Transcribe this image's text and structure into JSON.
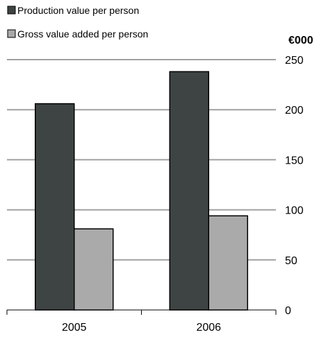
{
  "chart_data": {
    "type": "bar",
    "categories": [
      "2005",
      "2006"
    ],
    "series": [
      {
        "name": "Production value per person",
        "values": [
          206,
          238
        ],
        "color": "#3e4443"
      },
      {
        "name": "Gross value added per person",
        "values": [
          81,
          94
        ],
        "color": "#a9aaa9"
      }
    ],
    "ylabel": "€000",
    "ylim": [
      0,
      250
    ],
    "yticks": [
      0,
      50,
      100,
      150,
      200,
      250
    ],
    "y_axis_position": "right",
    "grid": true,
    "gridline_color": "#a0a0a0",
    "legend_position": "top-left"
  }
}
